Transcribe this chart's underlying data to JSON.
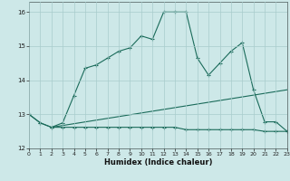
{
  "xlabel": "Humidex (Indice chaleur)",
  "background_color": "#cde8e8",
  "grid_color": "#a8cccc",
  "line_color": "#1a6b5a",
  "xlim": [
    0,
    23
  ],
  "ylim": [
    12,
    16.3
  ],
  "xticks": [
    0,
    1,
    2,
    3,
    4,
    5,
    6,
    7,
    8,
    9,
    10,
    11,
    12,
    13,
    14,
    15,
    16,
    17,
    18,
    19,
    20,
    21,
    22,
    23
  ],
  "yticks": [
    12,
    13,
    14,
    15,
    16
  ],
  "line1_x": [
    0,
    1,
    2,
    3,
    4,
    5,
    6,
    7,
    8,
    9,
    10,
    11,
    12,
    13,
    14,
    15,
    16,
    17,
    18,
    19,
    20,
    21,
    22,
    23
  ],
  "line1_y": [
    13.0,
    12.75,
    12.62,
    12.62,
    12.62,
    12.62,
    12.62,
    12.62,
    12.62,
    12.62,
    12.62,
    12.62,
    12.62,
    12.62,
    12.55,
    12.55,
    12.55,
    12.55,
    12.55,
    12.55,
    12.55,
    12.5,
    12.5,
    12.5
  ],
  "line2_x": [
    2,
    23
  ],
  "line2_y": [
    12.62,
    13.72
  ],
  "line3_x": [
    0,
    1,
    2,
    3,
    4,
    5,
    6,
    7,
    8,
    9,
    10,
    11,
    12,
    13,
    14,
    15,
    16,
    17,
    18,
    19,
    20,
    21,
    22,
    23
  ],
  "line3_y": [
    13.0,
    12.75,
    12.62,
    12.75,
    13.55,
    14.35,
    14.45,
    14.65,
    14.85,
    14.95,
    15.3,
    15.2,
    16.0,
    16.0,
    16.0,
    14.65,
    14.15,
    14.5,
    14.85,
    15.1,
    13.72,
    12.78,
    12.78,
    12.5
  ]
}
